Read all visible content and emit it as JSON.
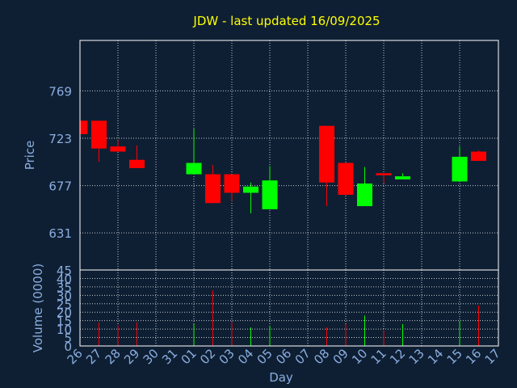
{
  "chart_data": {
    "type": "candlestick",
    "title": "JDW - last updated 16/09/2025",
    "xlabel": "Day",
    "price_panel": {
      "ylabel": "Price",
      "yticks": [
        631,
        677,
        723,
        769
      ],
      "ylim": [
        595,
        818
      ]
    },
    "volume_panel": {
      "ylabel": "Volume (0000)",
      "yticks": [
        0,
        5,
        10,
        15,
        20,
        25,
        30,
        35,
        40,
        45
      ],
      "ylim": [
        0,
        45
      ]
    },
    "x_ticks": [
      "26",
      "27",
      "28",
      "29",
      "30",
      "31",
      "01",
      "02",
      "03",
      "04",
      "05",
      "06",
      "07",
      "08",
      "09",
      "10",
      "11",
      "12",
      "13",
      "14",
      "15",
      "16",
      "17"
    ],
    "candles": [
      {
        "day": "26",
        "open": 740,
        "close": 727,
        "high": 740,
        "low": 727,
        "volume": 0
      },
      {
        "day": "27",
        "open": 740,
        "close": 713,
        "high": 740,
        "low": 700,
        "volume": 14
      },
      {
        "day": "28",
        "open": 715,
        "close": 710,
        "high": 721,
        "low": 710,
        "volume": 12
      },
      {
        "day": "29",
        "open": 702,
        "close": 694,
        "high": 716,
        "low": 694,
        "volume": 14
      },
      {
        "day": "01",
        "open": 688,
        "close": 699,
        "high": 732,
        "low": 688,
        "volume": 13
      },
      {
        "day": "02",
        "open": 688,
        "close": 660,
        "high": 697,
        "low": 660,
        "volume": 33
      },
      {
        "day": "03",
        "open": 688,
        "close": 670,
        "high": 688,
        "low": 662,
        "volume": 14
      },
      {
        "day": "04",
        "open": 670,
        "close": 676,
        "high": 680,
        "low": 650,
        "volume": 11
      },
      {
        "day": "05",
        "open": 654,
        "close": 682,
        "high": 696,
        "low": 654,
        "volume": 12
      },
      {
        "day": "08",
        "open": 735,
        "close": 680,
        "high": 735,
        "low": 657,
        "volume": 11
      },
      {
        "day": "09",
        "open": 699,
        "close": 668,
        "high": 699,
        "low": 668,
        "volume": 13
      },
      {
        "day": "10",
        "open": 657,
        "close": 679,
        "high": 695,
        "low": 657,
        "volume": 18
      },
      {
        "day": "11",
        "open": 689,
        "close": 687,
        "high": 689,
        "low": 679,
        "volume": 9
      },
      {
        "day": "12",
        "open": 683,
        "close": 686,
        "high": 689,
        "low": 683,
        "volume": 13
      },
      {
        "day": "15",
        "open": 681,
        "close": 705,
        "high": 715,
        "low": 681,
        "volume": 15
      },
      {
        "day": "16",
        "open": 710,
        "close": 701,
        "high": 711,
        "low": 701,
        "volume": 24
      }
    ],
    "colors": {
      "background": "#0f1f33",
      "up": "#00ff00",
      "down": "#ff0000",
      "title": "#ffff00",
      "axis_text": "#8aaee0",
      "frame": "#ffffff"
    },
    "grid": true
  }
}
